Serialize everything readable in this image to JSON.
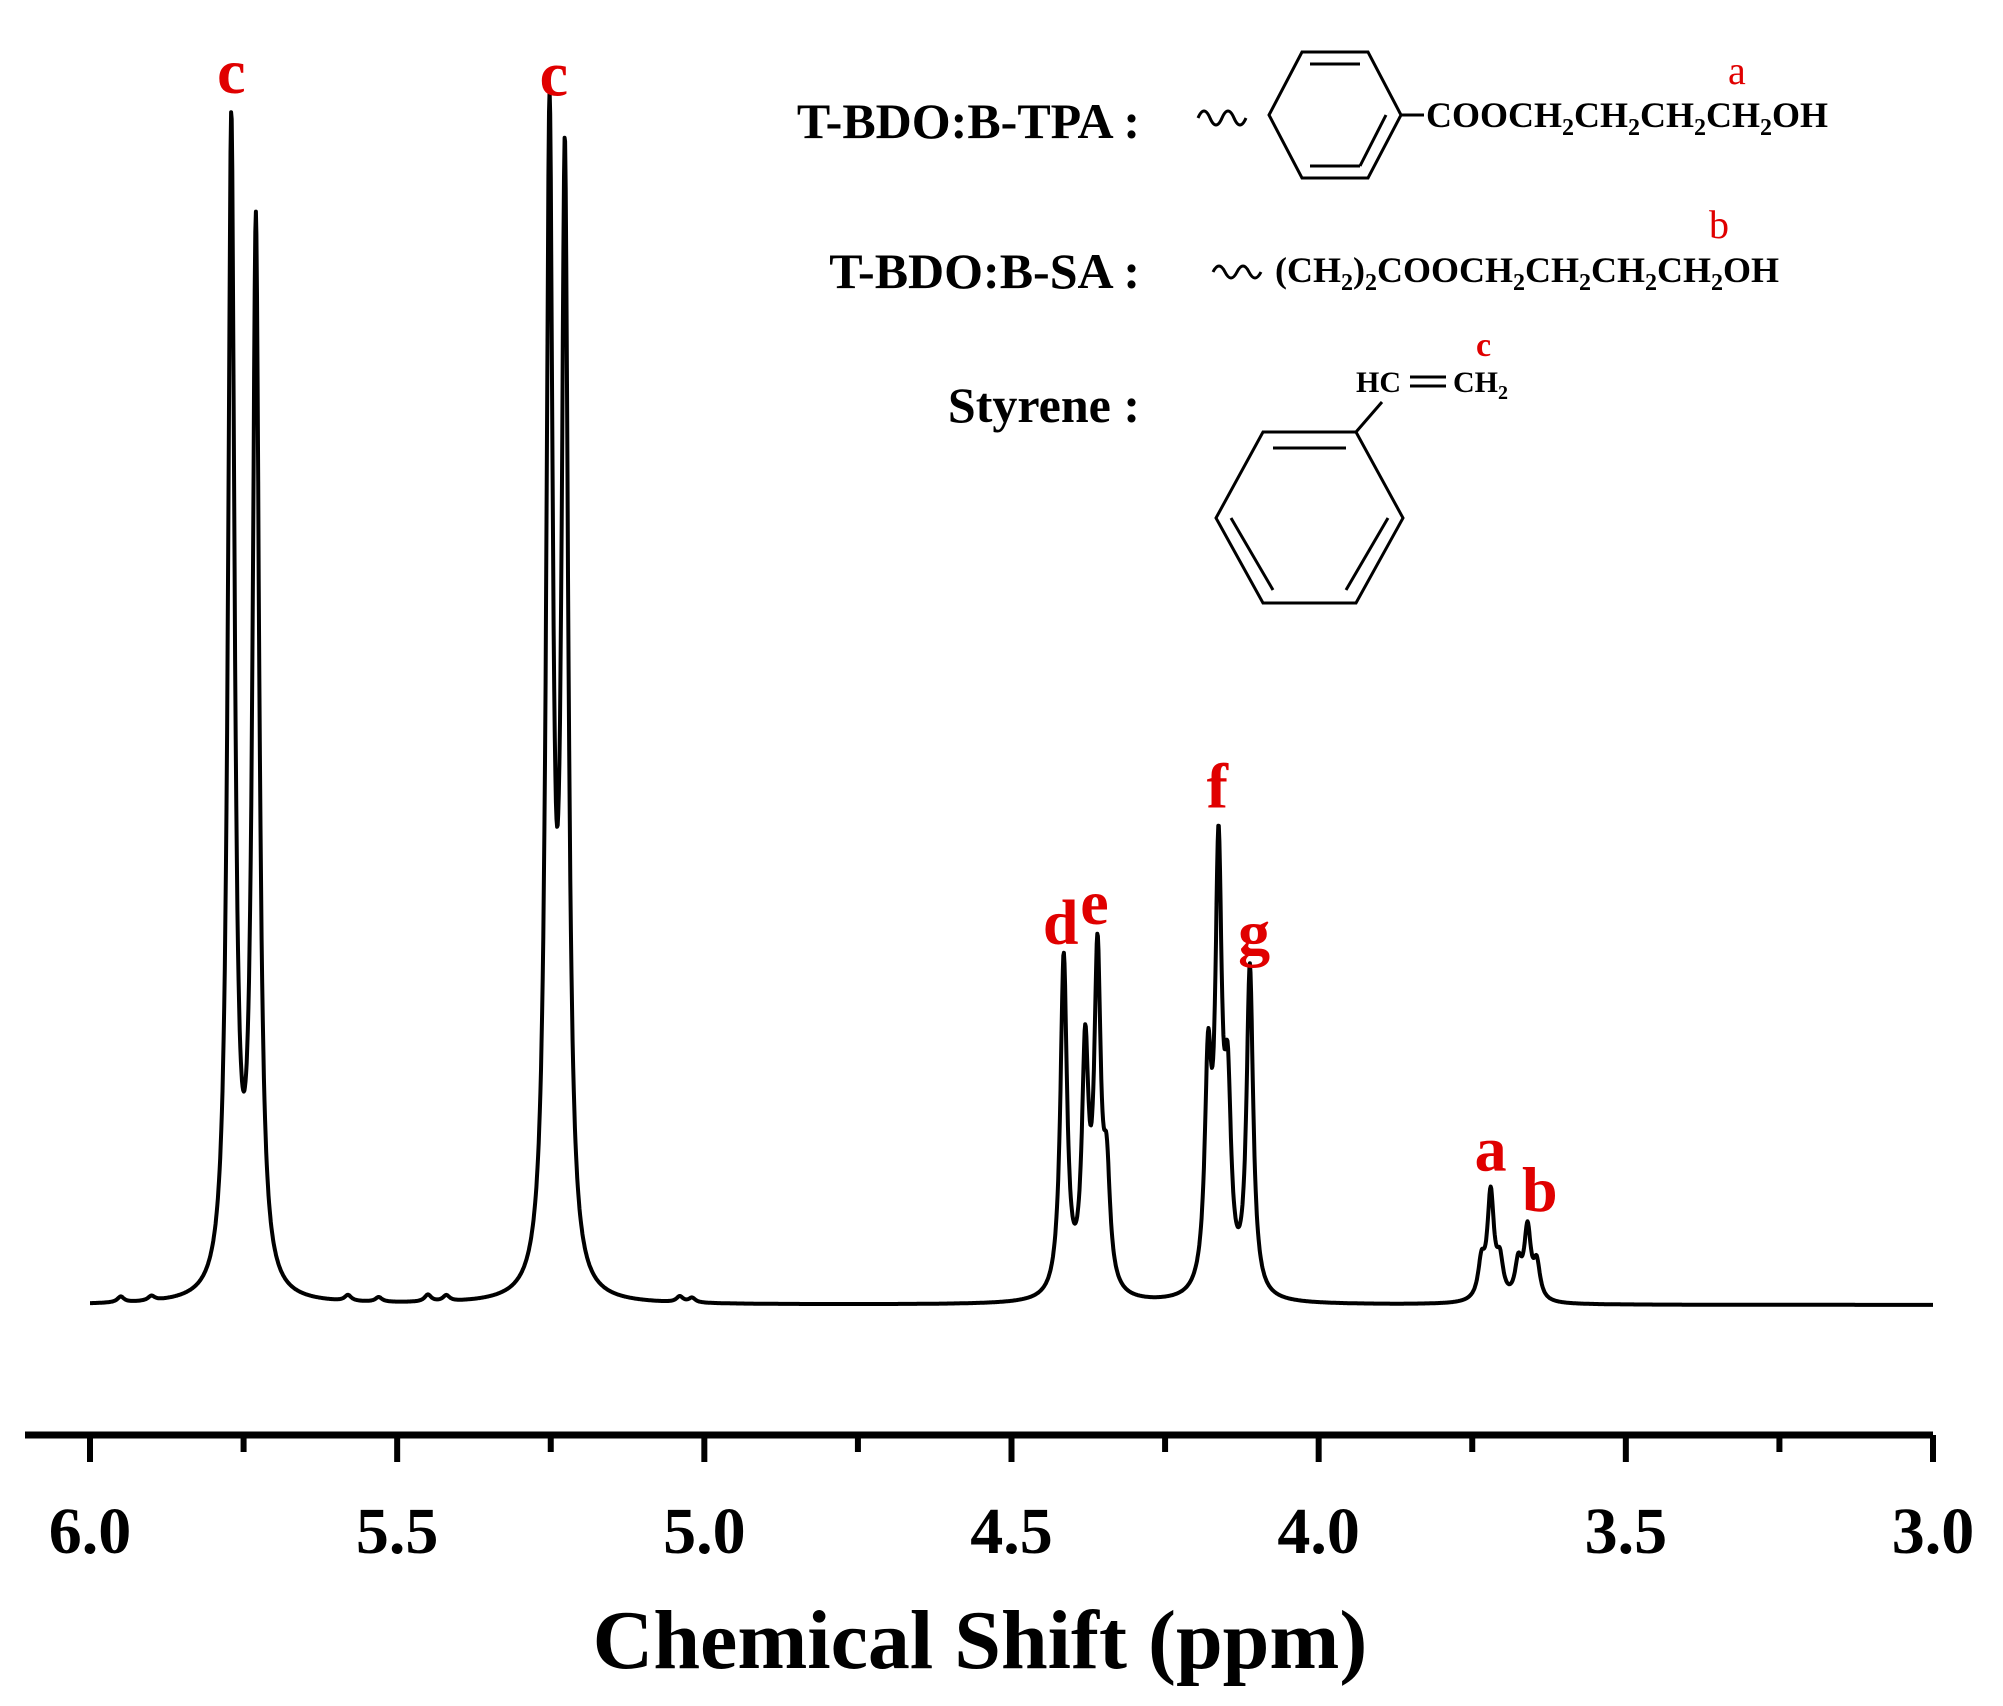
{
  "chart_data": {
    "type": "line",
    "title": "",
    "xlabel": "Chemical Shift (ppm)",
    "ylabel": "",
    "xlim": [
      6.0,
      3.0
    ],
    "x_reversed": true,
    "x_ticks": [
      "6.0",
      "5.5",
      "5.0",
      "4.5",
      "4.0",
      "3.5",
      "3.0"
    ],
    "grid": false,
    "legend": "none",
    "line_color": "#000000",
    "label_color": "#e00000",
    "series": [
      {
        "peaks": [
          {
            "x": 5.77,
            "height": 1.0
          },
          {
            "x": 5.73,
            "height": 0.91
          },
          {
            "x": 5.252,
            "height": 0.98
          },
          {
            "x": 5.227,
            "height": 0.94
          },
          {
            "x": 4.415,
            "height": 0.29
          },
          {
            "x": 4.38,
            "height": 0.2
          },
          {
            "x": 4.36,
            "height": 0.28
          },
          {
            "x": 4.345,
            "height": 0.09
          },
          {
            "x": 4.18,
            "height": 0.18
          },
          {
            "x": 4.163,
            "height": 0.36
          },
          {
            "x": 4.148,
            "height": 0.15
          },
          {
            "x": 4.112,
            "height": 0.28
          },
          {
            "x": 3.735,
            "height": 0.03
          },
          {
            "x": 3.72,
            "height": 0.09
          },
          {
            "x": 3.705,
            "height": 0.03
          },
          {
            "x": 3.675,
            "height": 0.03
          },
          {
            "x": 3.66,
            "height": 0.06
          },
          {
            "x": 3.645,
            "height": 0.03
          },
          {
            "x": 5.95,
            "height": 0.005
          },
          {
            "x": 5.9,
            "height": 0.004
          },
          {
            "x": 5.58,
            "height": 0.005
          },
          {
            "x": 5.53,
            "height": 0.004
          },
          {
            "x": 5.45,
            "height": 0.006
          },
          {
            "x": 5.42,
            "height": 0.005
          },
          {
            "x": 5.04,
            "height": 0.005
          },
          {
            "x": 5.02,
            "height": 0.004
          }
        ]
      }
    ],
    "annotations": [
      {
        "text": "c",
        "x": 5.77
      },
      {
        "text": "c",
        "x": 5.245
      },
      {
        "text": "d",
        "x": 4.42
      },
      {
        "text": "e",
        "x": 4.365
      },
      {
        "text": "f",
        "x": 4.165
      },
      {
        "text": "g",
        "x": 4.105
      },
      {
        "text": "a",
        "x": 3.72
      },
      {
        "text": "b",
        "x": 3.64
      }
    ]
  },
  "inset": {
    "compounds": [
      {
        "name": "T-BDO:B-TPA :",
        "formula_parts": [
          "COOCH",
          "2",
          "CH",
          "2",
          "CH",
          "2",
          "CH",
          "2",
          "OH"
        ],
        "marker": "a"
      },
      {
        "name": "T-BDO:B-SA :",
        "formula_parts": [
          "(CH",
          "2",
          ")",
          "2",
          "COOCH",
          "2",
          "CH",
          "2",
          "CH",
          "2",
          "CH",
          "2",
          "OH"
        ],
        "marker": "b"
      },
      {
        "name": "Styrene :",
        "formula_parts": [
          "HC",
          "CH",
          "2"
        ],
        "marker": "c"
      }
    ]
  }
}
